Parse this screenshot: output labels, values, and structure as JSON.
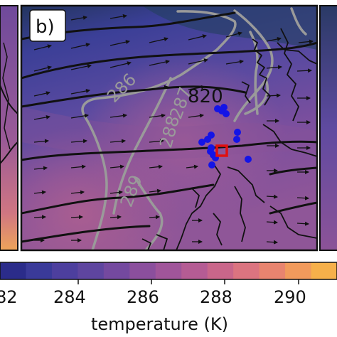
{
  "panel_label": "b)",
  "contour_labels_gray": [
    "286",
    "289",
    "288",
    "287"
  ],
  "contour_label_black": "820",
  "colorbar": {
    "ticks": [
      "82",
      "284",
      "286",
      "288",
      "290"
    ],
    "label": "temperature (K)",
    "colors": [
      "#2b2c8a",
      "#3a3a99",
      "#4d3f9e",
      "#5e459f",
      "#74499f",
      "#8b4f9d",
      "#a0559a",
      "#b55c94",
      "#c9668a",
      "#db7480",
      "#e8846f",
      "#f19a5c",
      "#f6b04a"
    ]
  },
  "markers": {
    "stations_color": "#1414e6",
    "target_color": "#e01010"
  }
}
